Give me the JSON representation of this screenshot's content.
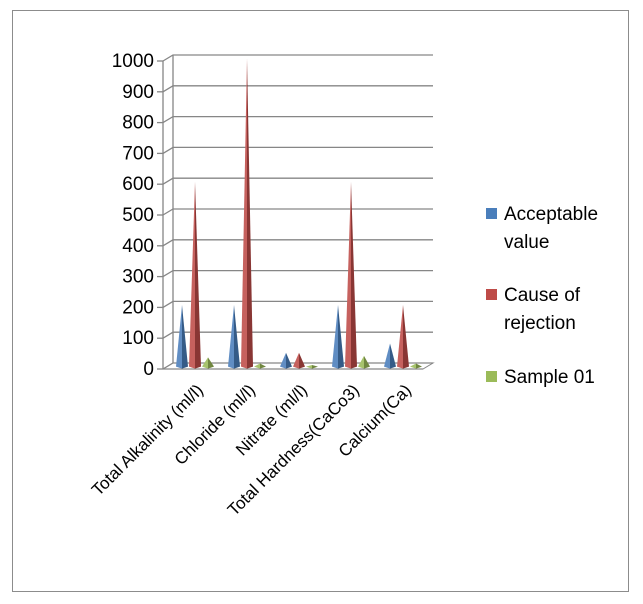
{
  "chart_data": {
    "type": "bar",
    "style": "3d-pyramid",
    "categories": [
      "Total Alkalinity (ml/l)",
      "Chloride (ml/l)",
      "Nitrate (ml/l)",
      "Total Hardness(CaCo3)",
      "Calcium(Ca)"
    ],
    "series": [
      {
        "name": "Acceptable value",
        "values": [
          200,
          200,
          45,
          200,
          75
        ],
        "color": "#4a7ebb"
      },
      {
        "name": "Cause of rejection",
        "values": [
          600,
          1000,
          45,
          600,
          200
        ],
        "color": "#be4b48"
      },
      {
        "name": "Sample 01",
        "values": [
          30,
          10,
          5,
          35,
          10
        ],
        "color": "#9bbb59"
      }
    ],
    "y_ticks": [
      "0",
      "100",
      "200",
      "300",
      "400",
      "500",
      "600",
      "700",
      "800",
      "900",
      "1000"
    ],
    "ylim": [
      0,
      1000
    ],
    "grid": true,
    "legend_position": "right",
    "legend": [
      {
        "lines": [
          "Acceptable",
          "value"
        ],
        "color": "#4a7ebb"
      },
      {
        "lines": [
          "Cause of",
          "rejection"
        ],
        "color": "#be4b48"
      },
      {
        "lines": [
          "Sample 01"
        ],
        "color": "#9bbb59"
      }
    ]
  }
}
